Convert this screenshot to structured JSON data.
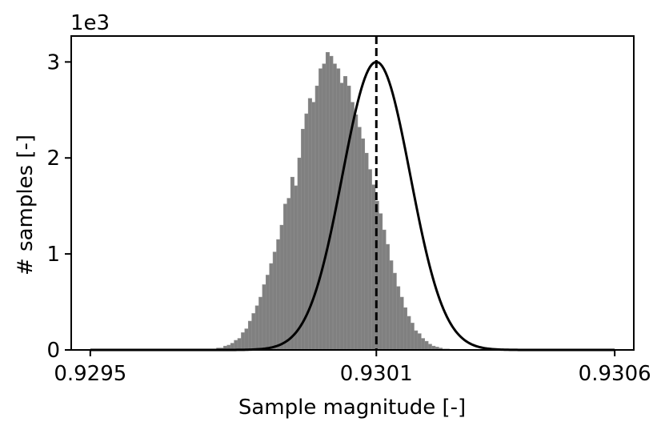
{
  "chart_data": {
    "type": "bar",
    "title": "",
    "xlabel": "Sample magnitude [-]",
    "ylabel": "# samples [-]",
    "y_offset_label": "1e3",
    "xlim": [
      0.92946,
      0.93064
    ],
    "ylim": [
      0,
      3.27
    ],
    "x_ticks": [
      {
        "value": 0.9295,
        "label": "0.9295"
      },
      {
        "value": 0.9301,
        "label": "0.9301"
      },
      {
        "value": 0.9306,
        "label": "0.9306"
      }
    ],
    "y_ticks": [
      {
        "value": 0,
        "label": "0"
      },
      {
        "value": 1,
        "label": "1"
      },
      {
        "value": 2,
        "label": "2"
      },
      {
        "value": 3,
        "label": "3"
      }
    ],
    "histogram": {
      "color": "#808080",
      "bin_start": 0.92975,
      "bin_width": 7.4e-06,
      "counts": [
        0.01,
        0.01,
        0.02,
        0.02,
        0.04,
        0.05,
        0.07,
        0.1,
        0.12,
        0.18,
        0.22,
        0.3,
        0.38,
        0.46,
        0.55,
        0.68,
        0.78,
        0.9,
        1.02,
        1.15,
        1.3,
        1.52,
        1.58,
        1.8,
        1.71,
        2.0,
        2.3,
        2.46,
        2.62,
        2.58,
        2.75,
        2.93,
        2.98,
        3.1,
        3.06,
        2.98,
        2.93,
        2.78,
        2.85,
        2.75,
        2.58,
        2.45,
        2.32,
        2.2,
        2.05,
        1.88,
        1.72,
        1.55,
        1.42,
        1.25,
        1.1,
        0.93,
        0.8,
        0.66,
        0.55,
        0.44,
        0.35,
        0.28,
        0.2,
        0.17,
        0.12,
        0.09,
        0.06,
        0.04,
        0.03,
        0.02,
        0.01,
        0.01
      ]
    },
    "fit_curve": {
      "type": "gaussian",
      "color": "#000000",
      "peak": 3.0,
      "mean": 0.9301,
      "sigma": 7.12e-05,
      "x_range": [
        0.9295,
        0.9306
      ]
    },
    "vertical_line": {
      "x": 0.9301,
      "style": "dashed",
      "color": "#000000"
    },
    "grid": false,
    "legend": "none"
  }
}
